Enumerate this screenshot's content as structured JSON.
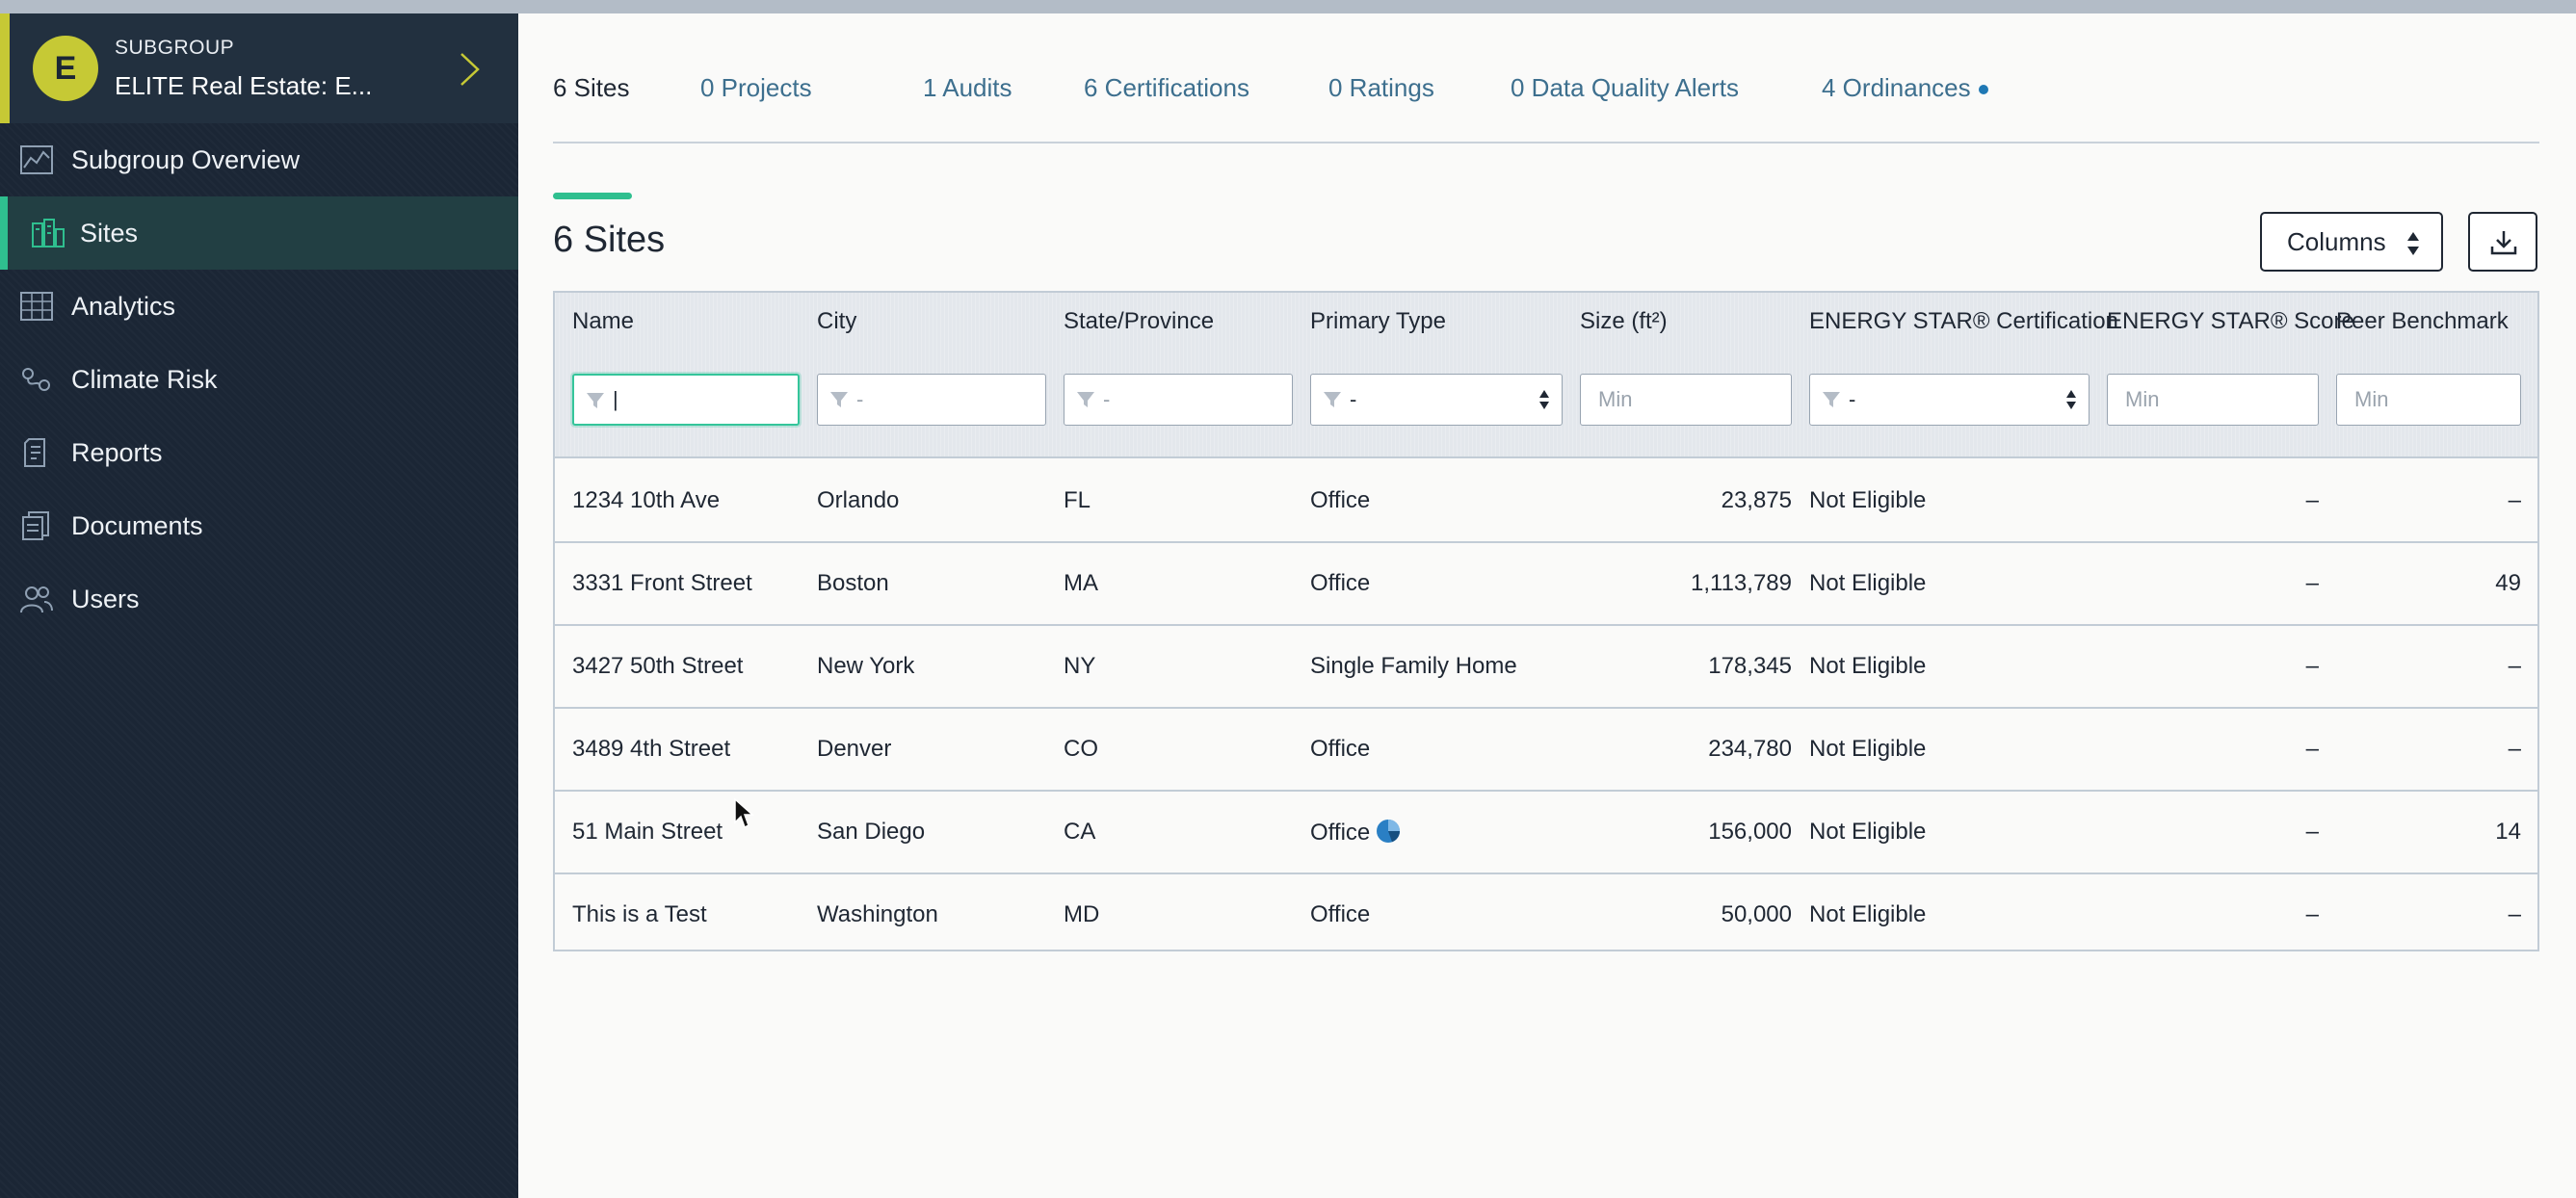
{
  "sidebar": {
    "subgroup": {
      "avatar_letter": "E",
      "kicker": "SUBGROUP",
      "name": "ELITE Real Estate: E..."
    },
    "items": [
      {
        "label": "Subgroup Overview",
        "icon": "overview-chart-icon"
      },
      {
        "label": "Sites",
        "icon": "buildings-icon",
        "active": true
      },
      {
        "label": "Analytics",
        "icon": "analytics-chart-icon"
      },
      {
        "label": "Climate Risk",
        "icon": "climate-risk-icon"
      },
      {
        "label": "Reports",
        "icon": "report-icon"
      },
      {
        "label": "Documents",
        "icon": "documents-icon"
      },
      {
        "label": "Users",
        "icon": "users-icon"
      }
    ]
  },
  "tabs": [
    {
      "label": "6 Sites",
      "active": true
    },
    {
      "label": "0 Projects"
    },
    {
      "label": "1 Audits"
    },
    {
      "label": "6 Certifications"
    },
    {
      "label": "0 Ratings"
    },
    {
      "label": "0 Data Quality Alerts"
    },
    {
      "label": "4 Ordinances",
      "has_dot": true
    }
  ],
  "section": {
    "title": "6 Sites",
    "columns_label": "Columns"
  },
  "table": {
    "headers": {
      "name": "Name",
      "city": "City",
      "state": "State/Province",
      "type": "Primary Type",
      "size": "Size (ft²)",
      "cert": "ENERGY STAR® Certification",
      "score": "ENERGY STAR® Score",
      "bench": "Peer Benchmark"
    },
    "filters": {
      "name": "|",
      "city": "-",
      "state": "-",
      "type": "-",
      "size_placeholder": "Min",
      "cert": "-",
      "score_placeholder": "Min",
      "bench_placeholder": "Min"
    },
    "rows": [
      {
        "name": "1234 10th Ave",
        "city": "Orlando",
        "state": "FL",
        "type": "Office",
        "size": "23,875",
        "cert": "Not Eligible",
        "score": "–",
        "bench": "–"
      },
      {
        "name": "3331 Front Street",
        "city": "Boston",
        "state": "MA",
        "type": "Office",
        "size": "1,113,789",
        "cert": "Not Eligible",
        "score": "–",
        "bench": "49"
      },
      {
        "name": "3427 50th Street",
        "city": "New York",
        "state": "NY",
        "type": "Single Family Home",
        "size": "178,345",
        "cert": "Not Eligible",
        "score": "–",
        "bench": "–"
      },
      {
        "name": "3489 4th Street",
        "city": "Denver",
        "state": "CO",
        "type": "Office",
        "size": "234,780",
        "cert": "Not Eligible",
        "score": "–",
        "bench": "–"
      },
      {
        "name": "51 Main Street",
        "city": "San Diego",
        "state": "CA",
        "type": "Office",
        "size": "156,000",
        "cert": "Not Eligible",
        "score": "–",
        "bench": "14",
        "type_icon": "mixed-use-pie-icon"
      },
      {
        "name": "This is a Test",
        "city": "Washington",
        "state": "MD",
        "type": "Office",
        "size": "50,000",
        "cert": "Not Eligible",
        "score": "–",
        "bench": "–"
      }
    ]
  },
  "colors": {
    "sidebar_bg": "#1b2635",
    "accent_green": "#2fbf8f",
    "accent_yellow": "#c6c935",
    "link_blue": "#3d6f8e"
  }
}
